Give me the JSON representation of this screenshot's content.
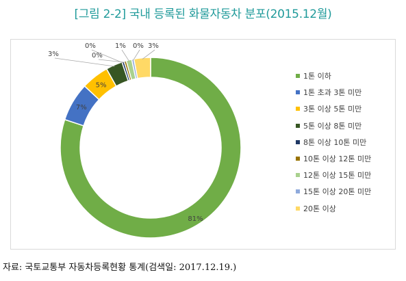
{
  "title": "[그림 2-2] 국내 등록된 화물자동차 분포(2015.12월)",
  "source": "자료: 국토교통부 자동차등록현황 통계(검색일: 2017.12.19.)",
  "chart_data": {
    "type": "pie",
    "style": "doughnut",
    "title": "",
    "categories": [
      "1톤 이하",
      "1톤 초과 3톤 미만",
      "3톤 이상 5톤 미만",
      "5톤 이상 8톤 미만",
      "8톤 이상 10톤 미만",
      "10톤 이상 12톤 미만",
      "12톤 이상 15톤 미만",
      "15톤 이상 20톤 미만",
      "20톤 이상"
    ],
    "values": [
      81,
      7,
      5,
      3,
      0,
      0,
      1,
      0,
      3
    ],
    "data_labels": [
      "81%",
      "7%",
      "5%",
      "3%",
      "0%",
      "0%",
      "1%",
      "0%",
      "3%"
    ],
    "colors": [
      "#70ad47",
      "#4472c4",
      "#ffc000",
      "#375623",
      "#1f3864",
      "#997300",
      "#a9d18e",
      "#8faadc",
      "#ffd966"
    ],
    "legend_position": "right"
  }
}
